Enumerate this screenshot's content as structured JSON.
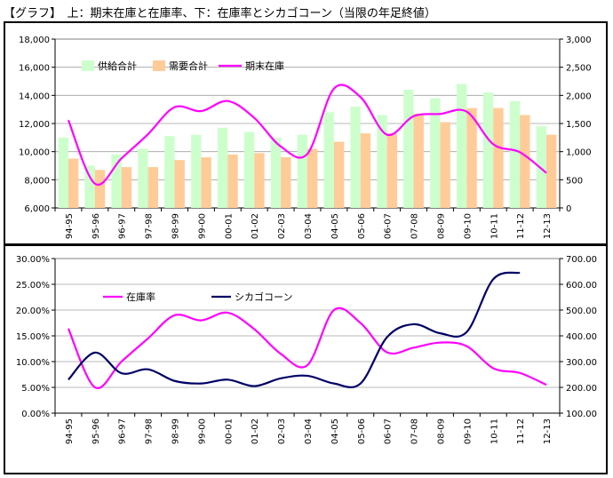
{
  "page_title": "【グラフ】　上：期末在庫と在庫率、下：在庫率とシカゴコーン（当限の年足終値）",
  "colors": {
    "supply": "#ccffcc",
    "demand": "#ffcc99",
    "stock": "#ff00ff",
    "ratio": "#ff00ff",
    "corn": "#000066"
  },
  "chart_data": [
    {
      "type": "bar",
      "title": "",
      "categories": [
        "94-95",
        "95-96",
        "96-97",
        "97-98",
        "98-99",
        "99-00",
        "00-01",
        "01-02",
        "02-03",
        "03-04",
        "04-05",
        "05-06",
        "06-07",
        "07-08",
        "08-09",
        "09-10",
        "10-11",
        "11-12",
        "12-13"
      ],
      "ylim_left": [
        6000,
        18000
      ],
      "yticks_left": [
        "6,000",
        "8,000",
        "10,000",
        "12,000",
        "14,000",
        "16,000",
        "18,000"
      ],
      "ylim_right": [
        0,
        3000
      ],
      "yticks_right": [
        "0",
        "500",
        "1,000",
        "1,500",
        "2,000",
        "2,500",
        "3,000"
      ],
      "legend_placement": "top-left",
      "series": [
        {
          "name": "供給合計",
          "type": "bar",
          "axis": "left",
          "values": [
            11000,
            9000,
            9800,
            10200,
            11100,
            11200,
            11700,
            11400,
            11000,
            11200,
            12800,
            13200,
            12600,
            14400,
            13800,
            14800,
            14200,
            13600,
            11800
          ]
        },
        {
          "name": "需要合計",
          "type": "bar",
          "axis": "left",
          "values": [
            9500,
            8700,
            8900,
            8900,
            9400,
            9600,
            9800,
            9900,
            9600,
            10200,
            10700,
            11300,
            11300,
            12700,
            12100,
            13100,
            13100,
            12600,
            11200
          ]
        },
        {
          "name": "期末在庫",
          "type": "line",
          "axis": "right",
          "values": [
            1560,
            430,
            880,
            1310,
            1790,
            1720,
            1900,
            1600,
            1090,
            960,
            2120,
            1970,
            1300,
            1630,
            1670,
            1710,
            1130,
            990,
            620
          ]
        }
      ]
    },
    {
      "type": "line",
      "title": "",
      "categories": [
        "94-95",
        "95-96",
        "96-97",
        "97-98",
        "98-99",
        "99-00",
        "00-01",
        "01-02",
        "02-03",
        "03-04",
        "04-05",
        "05-06",
        "06-07",
        "07-08",
        "08-09",
        "09-10",
        "10-11",
        "11-12",
        "12-13"
      ],
      "ylim_left": [
        0,
        0.3
      ],
      "yticks_left": [
        "0.00%",
        "5.00%",
        "10.00%",
        "15.00%",
        "20.00%",
        "25.00%",
        "30.00%"
      ],
      "ylim_right": [
        100,
        700
      ],
      "yticks_right": [
        "100.00",
        "200.00",
        "300.00",
        "400.00",
        "500.00",
        "600.00",
        "700.00"
      ],
      "legend_placement": "top-left",
      "series": [
        {
          "name": "在庫率",
          "axis": "left",
          "values": [
            0.164,
            0.05,
            0.1,
            0.145,
            0.19,
            0.18,
            0.195,
            0.163,
            0.115,
            0.093,
            0.2,
            0.175,
            0.118,
            0.127,
            0.137,
            0.13,
            0.087,
            0.078,
            0.055
          ]
        },
        {
          "name": "シカゴコーン",
          "axis": "right",
          "values": [
            230,
            335,
            255,
            270,
            225,
            215,
            230,
            205,
            235,
            245,
            215,
            215,
            395,
            445,
            410,
            415,
            620,
            645,
            null
          ]
        }
      ]
    }
  ]
}
